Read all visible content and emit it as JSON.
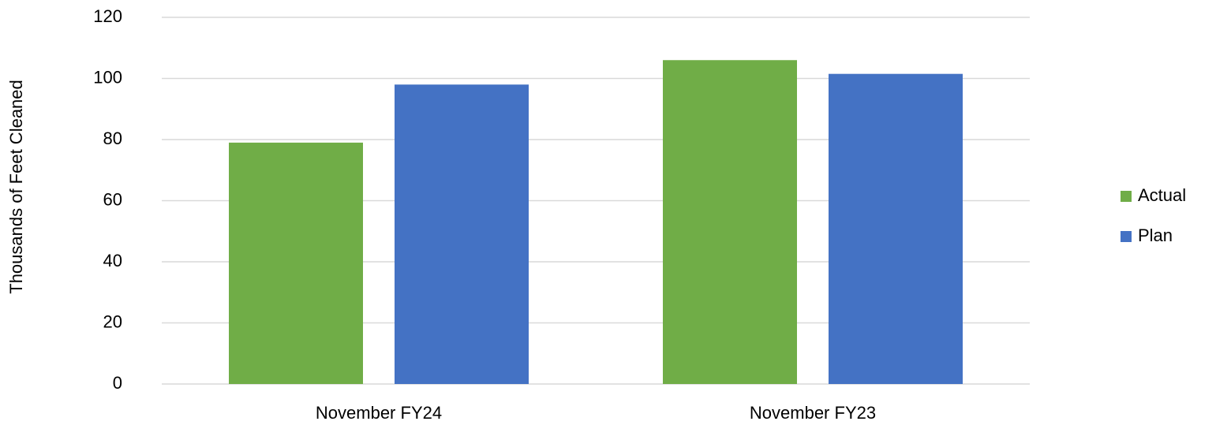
{
  "chart_data": {
    "type": "bar",
    "y_label": "Thousands of Feet Cleaned",
    "categories": [
      "November FY24",
      "November FY23"
    ],
    "series": [
      {
        "name": "Actual",
        "color": "#70ad47",
        "values": [
          79,
          106
        ]
      },
      {
        "name": "Plan",
        "color": "#4472c4",
        "values": [
          98,
          101.5
        ]
      }
    ],
    "ylim": [
      0,
      120
    ],
    "yticks": [
      0,
      20,
      40,
      60,
      80,
      100,
      120
    ],
    "grid": true,
    "legend": "right"
  }
}
